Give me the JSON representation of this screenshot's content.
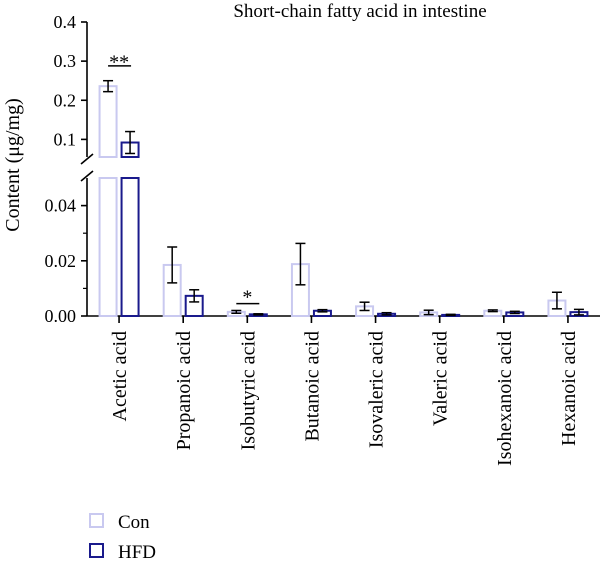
{
  "chart_data": {
    "type": "bar",
    "title": "Short-chain fatty acid in intestine",
    "ylabel": "Content (μg/mg)",
    "xlabel": "",
    "categories": [
      "Acetic acid",
      "Propanoic acid",
      "Isobutyric acid",
      "Butanoic acid",
      "Isovaleric acid",
      "Valeric acid",
      "Isohexanoic acid",
      "Hexanoic acid"
    ],
    "series": [
      {
        "name": "Con",
        "color": "#c9c9f0",
        "values": [
          0.236,
          0.0185,
          0.0015,
          0.0188,
          0.0035,
          0.0013,
          0.0019,
          0.0056
        ],
        "errors": [
          0.014,
          0.0065,
          0.0005,
          0.0075,
          0.0015,
          0.0008,
          0.0003,
          0.003
        ]
      },
      {
        "name": "HFD",
        "color": "#1a1a8c",
        "values": [
          0.092,
          0.0073,
          0.0006,
          0.0019,
          0.0008,
          0.0004,
          0.0013,
          0.0014
        ],
        "errors": [
          0.028,
          0.0022,
          0.0002,
          0.0004,
          0.0004,
          0.0002,
          0.0004,
          0.001
        ]
      }
    ],
    "y_axis_break": {
      "lower_ticks": [
        "0.00",
        "0.02",
        "0.04"
      ],
      "lower_range": [
        0,
        0.05
      ],
      "upper_ticks": [
        "0.1",
        "0.2",
        "0.3",
        "0.4"
      ],
      "upper_range": [
        0.055,
        0.4
      ]
    },
    "significance": [
      {
        "category": "Acetic acid",
        "label": "**"
      },
      {
        "category": "Isobutyric acid",
        "label": "*"
      }
    ],
    "legend_position": "bottom-left"
  }
}
